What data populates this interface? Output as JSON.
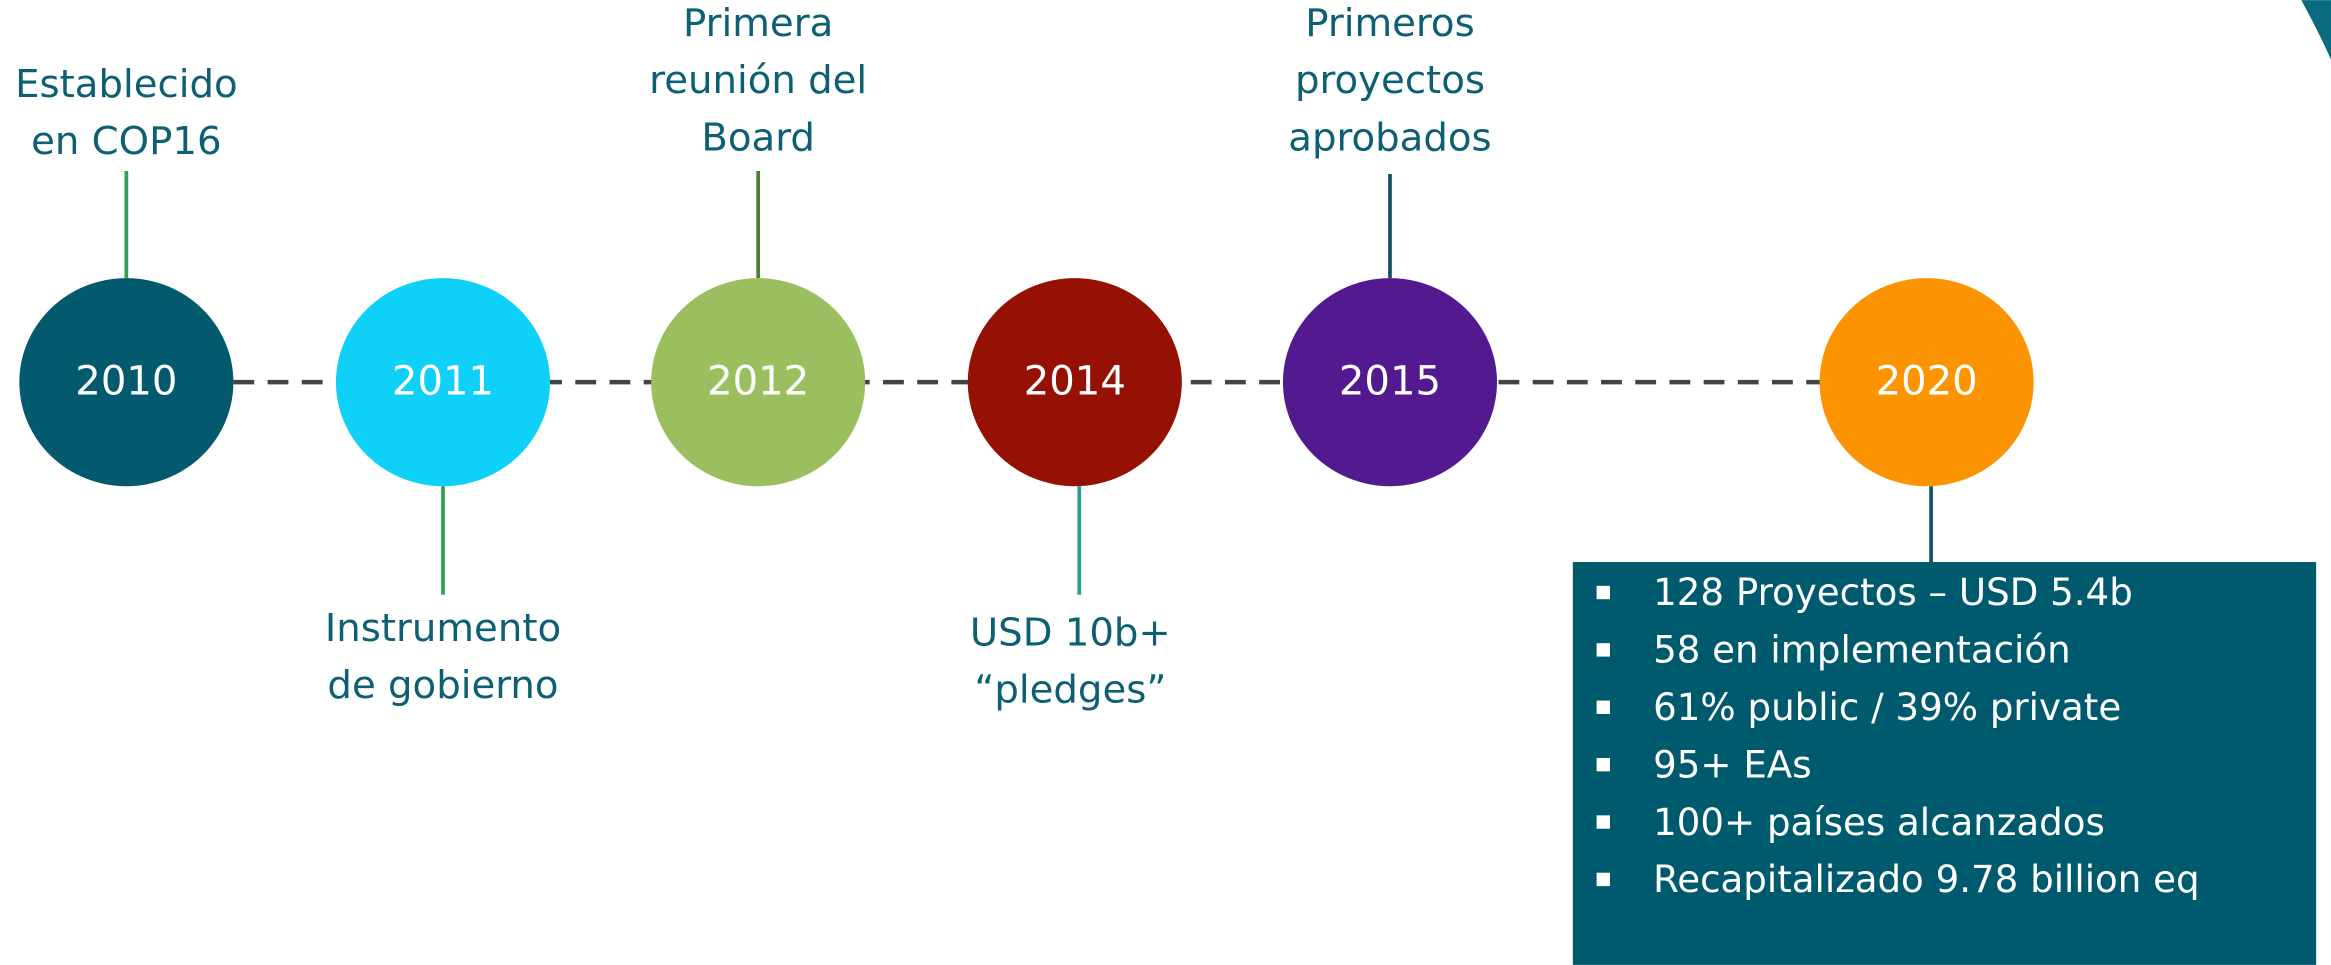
{
  "nodes": [
    {
      "year": "2010",
      "label": [
        "Establecido",
        "en  COP16"
      ]
    },
    {
      "year": "2011",
      "label": [
        "Instrumento",
        "de gobierno"
      ]
    },
    {
      "year": "2012",
      "label": [
        "Primera",
        "reunión del",
        "Board"
      ]
    },
    {
      "year": "2014",
      "label": [
        "USD 10b+",
        "“pledges”"
      ]
    },
    {
      "year": "2015",
      "label": [
        "Primeros",
        "proyectos",
        "aprobados"
      ]
    },
    {
      "year": "2020",
      "label": []
    }
  ],
  "summary": {
    "items": [
      "128 Proyectos – USD 5.4b",
      "58 en implementación",
      "61% public / 39% private",
      "95+ EAs",
      "100+ países alcanzados",
      "Recapitalizado 9.78 billion eq"
    ]
  }
}
